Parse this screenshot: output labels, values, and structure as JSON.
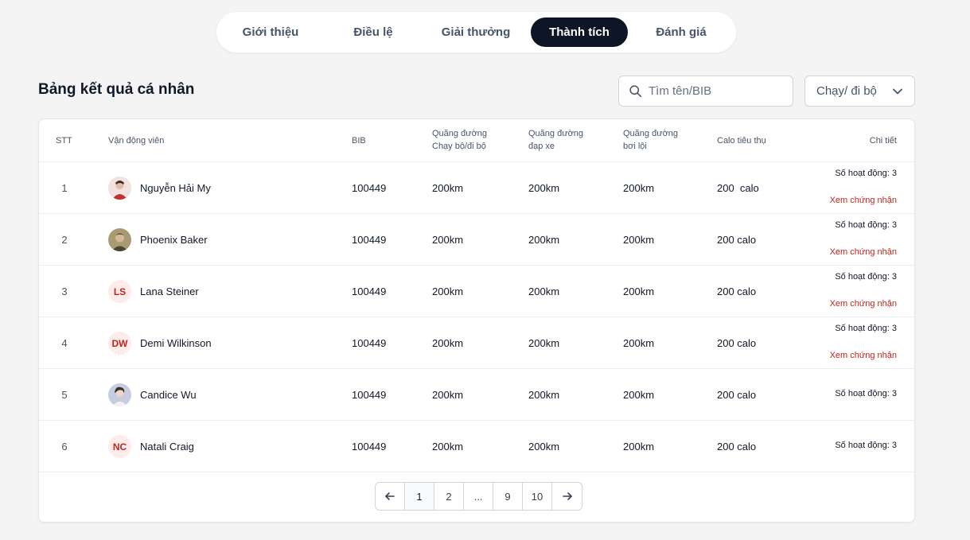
{
  "tabs": [
    {
      "label": "Giới thiệu",
      "active": false
    },
    {
      "label": "Điều lệ",
      "active": false
    },
    {
      "label": "Giải thưởng",
      "active": false
    },
    {
      "label": "Thành tích",
      "active": true
    },
    {
      "label": "Đánh giá",
      "active": false
    }
  ],
  "page_title": "Bảng kết quả cá nhân",
  "search": {
    "placeholder": "Tìm tên/BIB",
    "icon": "search-icon"
  },
  "filter": {
    "selected": "Chạy/ đi bộ",
    "icon": "chevron-down-icon"
  },
  "table": {
    "headers": {
      "stt": "STT",
      "athlete": "Vận động viên",
      "bib": "BIB",
      "run_line1": "Quãng đường",
      "run_line2": "Chạy bộ/đi bộ",
      "bike_line1": "Quãng đường",
      "bike_line2": "đạp xe",
      "swim_line1": "Quãng đường",
      "swim_line2": "bơi lội",
      "calo": "Calo tiêu thụ",
      "detail": "Chi tiết"
    },
    "rows": [
      {
        "stt": "1",
        "name": "Nguyễn Hải My",
        "avatar": "photo",
        "avatar_color": "#e8d2cf",
        "bib": "100449",
        "run": "200km",
        "bike": "200km",
        "swim": "200km",
        "calo": "200  calo",
        "activities": "Số hoạt động: 3",
        "cert": "Xem chứng nhận"
      },
      {
        "stt": "2",
        "name": "Phoenix Baker",
        "avatar": "photo",
        "avatar_color": "#8a7d5c",
        "bib": "100449",
        "run": "200km",
        "bike": "200km",
        "swim": "200km",
        "calo": "200 calo",
        "activities": "Số hoạt động: 3",
        "cert": "Xem chứng nhận"
      },
      {
        "stt": "3",
        "name": "Lana Steiner",
        "avatar": "LS",
        "bib": "100449",
        "run": "200km",
        "bike": "200km",
        "swim": "200km",
        "calo": "200 calo",
        "activities": "Số hoạt động: 3",
        "cert": "Xem chứng nhận"
      },
      {
        "stt": "4",
        "name": "Demi Wilkinson",
        "avatar": "DW",
        "bib": "100449",
        "run": "200km",
        "bike": "200km",
        "swim": "200km",
        "calo": "200 calo",
        "activities": "Số hoạt động: 3",
        "cert": "Xem chứng nhận"
      },
      {
        "stt": "5",
        "name": "Candice Wu",
        "avatar": "photo",
        "avatar_color": "#b9c1d6",
        "bib": "100449",
        "run": "200km",
        "bike": "200km",
        "swim": "200km",
        "calo": "200 calo",
        "activities": "Số hoạt động: 3",
        "cert": ""
      },
      {
        "stt": "6",
        "name": "Natali Craig",
        "avatar": "NC",
        "bib": "100449",
        "run": "200km",
        "bike": "200km",
        "swim": "200km",
        "calo": "200 calo",
        "activities": "Số hoạt động: 3",
        "cert": ""
      }
    ]
  },
  "pagination": {
    "prev_icon": "arrow-left-icon",
    "next_icon": "arrow-right-icon",
    "pages": [
      "1",
      "2",
      "...",
      "9",
      "10"
    ],
    "current": "1"
  },
  "colors": {
    "accent_red": "#c0261d",
    "tab_active_bg": "#0d1526"
  }
}
